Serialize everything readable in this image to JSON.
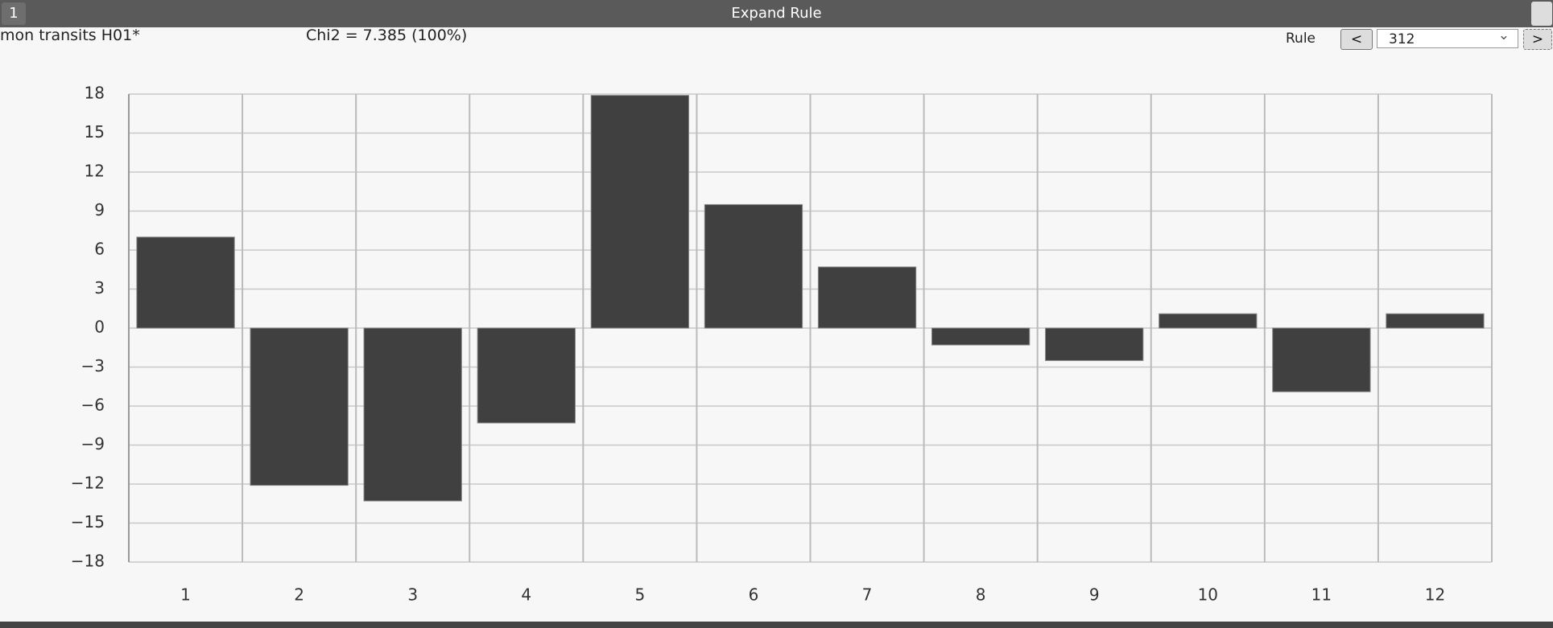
{
  "window": {
    "tab": "1",
    "title": "Expand Rule"
  },
  "toolbar": {
    "chart_name": "mon transits H01*",
    "statistic": "Chi2 = 7.385 (100%)",
    "rule_label": "Rule",
    "prev_button": "<",
    "rule_value": "312",
    "next_button": ">"
  },
  "chart_data": {
    "type": "bar",
    "categories": [
      "1",
      "2",
      "3",
      "4",
      "5",
      "6",
      "7",
      "8",
      "9",
      "10",
      "11",
      "12"
    ],
    "values": [
      7.0,
      -12.1,
      -13.3,
      -7.3,
      17.9,
      9.5,
      4.7,
      -1.3,
      -2.5,
      1.1,
      -4.9,
      1.1
    ],
    "color": "#404040",
    "ylim": [
      -18,
      18
    ],
    "yticks": [
      {
        "value": -18,
        "label": "−18"
      },
      {
        "value": -15,
        "label": "−15"
      },
      {
        "value": -12,
        "label": "−12"
      },
      {
        "value": -9,
        "label": "−9"
      },
      {
        "value": -6,
        "label": "−6"
      },
      {
        "value": -3,
        "label": "−3"
      },
      0,
      3,
      6,
      9,
      12,
      15,
      18
    ],
    "grid": true
  }
}
